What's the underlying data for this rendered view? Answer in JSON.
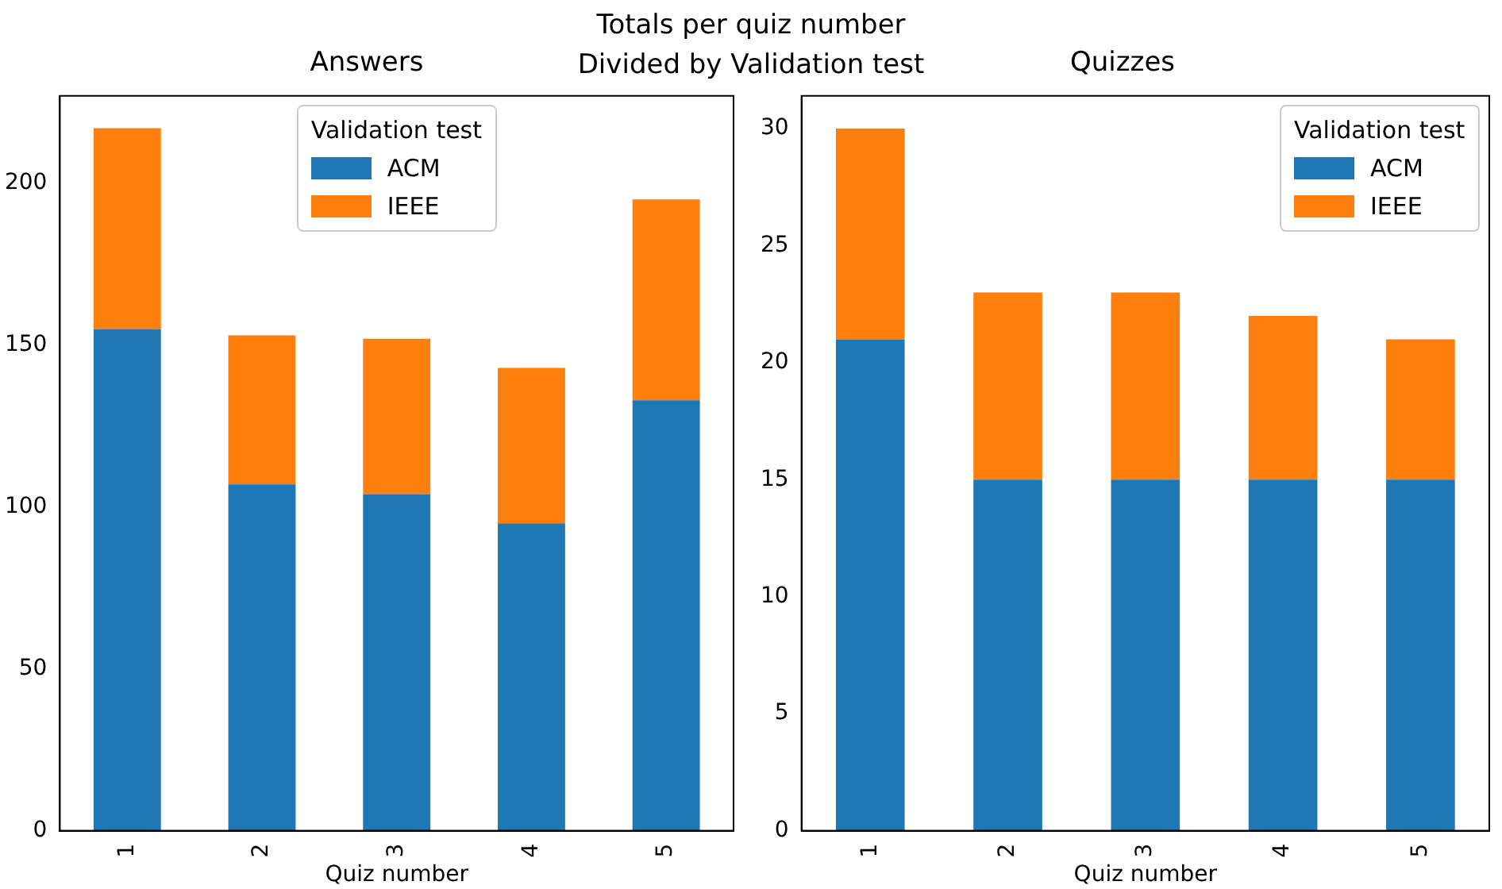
{
  "chart_data": [
    {
      "type": "bar",
      "title": "Answers",
      "annotations": [
        "Totals per quiz number\nDivided by Validation test"
      ],
      "xlabel": "Quiz number",
      "categories": [
        "1",
        "2",
        "3",
        "4",
        "5"
      ],
      "stacked": true,
      "legend": "top",
      "legend_title": "Validation test",
      "grid": false,
      "ylim": [
        0,
        227
      ],
      "yticks": [
        0,
        50,
        100,
        150,
        200
      ],
      "series": [
        {
          "name": "ACM",
          "color": "#1f77b4",
          "values": [
            155,
            107,
            104,
            95,
            133
          ]
        },
        {
          "name": "IEEE",
          "color": "#ff7f0e",
          "values": [
            62,
            46,
            48,
            48,
            62
          ]
        }
      ]
    },
    {
      "type": "bar",
      "title": "Quizzes",
      "xlabel": "Quiz number",
      "categories": [
        "1",
        "2",
        "3",
        "4",
        "5"
      ],
      "stacked": true,
      "legend": "top right",
      "legend_title": "Validation test",
      "grid": false,
      "ylim": [
        0,
        31.4
      ],
      "yticks": [
        0,
        5,
        10,
        15,
        20,
        25,
        30
      ],
      "series": [
        {
          "name": "ACM",
          "color": "#1f77b4",
          "values": [
            21,
            15,
            15,
            15,
            15
          ]
        },
        {
          "name": "IEEE",
          "color": "#ff7f0e",
          "values": [
            9,
            8,
            8,
            7,
            6
          ]
        }
      ]
    }
  ]
}
